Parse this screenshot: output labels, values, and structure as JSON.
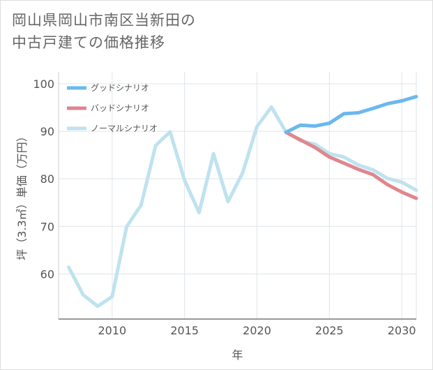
{
  "title": "岡山県岡山市南区当新田の\n中古戸建ての価格推移",
  "chart_data": {
    "type": "line",
    "title": "岡山県岡山市南区当新田の中古戸建ての価格推移",
    "xlabel": "年",
    "ylabel": "坪（3.3㎡）単価（万円）",
    "xlim": [
      2006.3,
      2031
    ],
    "ylim": [
      50.5,
      102.5
    ],
    "xticks": [
      2010,
      2015,
      2020,
      2025,
      2030
    ],
    "yticks": [
      60,
      70,
      80,
      90,
      100
    ],
    "grid": true,
    "legend_position": "top-left",
    "series": [
      {
        "name": "グッドシナリオ",
        "color": "#6cb8ee",
        "x": [
          2022,
          2023,
          2024,
          2025,
          2026,
          2027,
          2028,
          2029,
          2030,
          2031
        ],
        "values": [
          89.8,
          91.3,
          91.1,
          91.7,
          93.7,
          93.9,
          94.8,
          95.8,
          96.4,
          97.3
        ]
      },
      {
        "name": "バッドシナリオ",
        "color": "#e0868e",
        "x": [
          2022,
          2023,
          2024,
          2025,
          2026,
          2027,
          2028,
          2029,
          2030,
          2031
        ],
        "values": [
          89.8,
          88.2,
          86.6,
          84.6,
          83.3,
          82.0,
          80.9,
          78.8,
          77.2,
          75.9
        ]
      },
      {
        "name": "ノーマルシナリオ",
        "color": "#bfe2ef",
        "x": [
          2007,
          2008,
          2009,
          2010,
          2011,
          2012,
          2013,
          2014,
          2015,
          2016,
          2017,
          2018,
          2019,
          2020,
          2021,
          2022,
          2023,
          2024,
          2025,
          2026,
          2027,
          2028,
          2029,
          2030,
          2031
        ],
        "values": [
          61.4,
          55.6,
          53.2,
          55.2,
          69.9,
          74.5,
          87.0,
          89.9,
          79.7,
          72.9,
          85.3,
          75.2,
          81.2,
          91.0,
          95.1,
          89.9,
          88.0,
          87.3,
          85.3,
          84.6,
          82.9,
          81.9,
          80.1,
          79.3,
          77.6
        ]
      }
    ]
  }
}
